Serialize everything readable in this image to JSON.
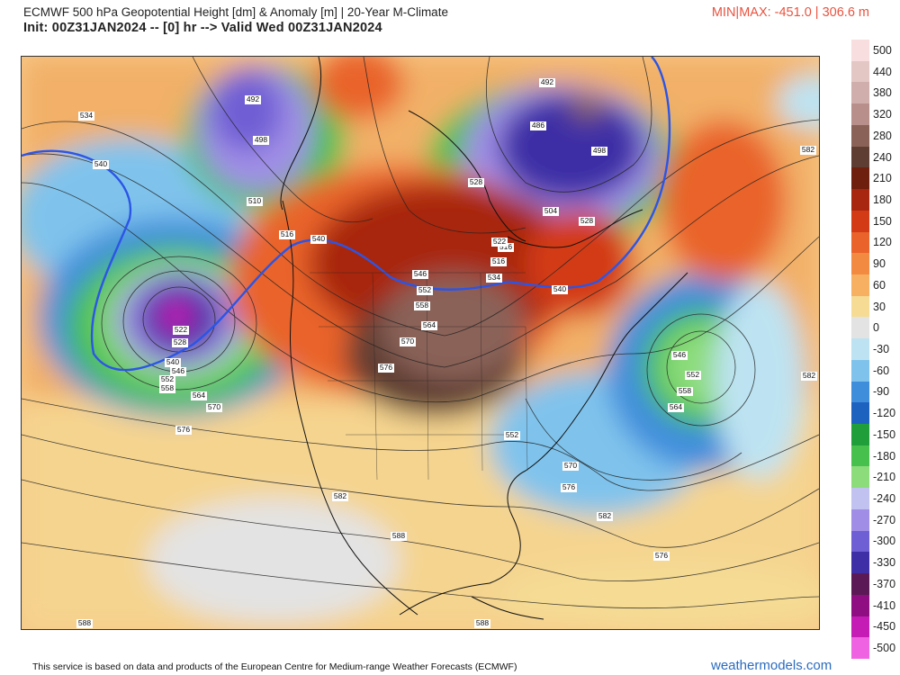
{
  "header": {
    "title": "ECMWF 500 hPa Geopotential Height [dm] & Anomaly [m] | 20-Year M-Climate",
    "subtitle": "Init: 00Z31JAN2024 -- [0] hr --> Valid Wed 00Z31JAN2024",
    "minmax": "MIN|MAX: -451.0 | 306.6 m"
  },
  "colorbar": {
    "labels": [
      "500",
      "440",
      "380",
      "320",
      "280",
      "240",
      "210",
      "180",
      "150",
      "120",
      "90",
      "60",
      "30",
      "0",
      "-30",
      "-60",
      "-90",
      "-120",
      "-150",
      "-180",
      "-210",
      "-240",
      "-270",
      "-300",
      "-330",
      "-370",
      "-410",
      "-450",
      "-500"
    ],
    "colors": [
      "#f8dede",
      "#e3c7c4",
      "#cfaeac",
      "#b98f8c",
      "#8a6258",
      "#5e3e33",
      "#6e1f0d",
      "#a8260f",
      "#d33b17",
      "#e9632a",
      "#f28a41",
      "#f7b061",
      "#f5db94",
      "#e3e3e3",
      "#bde3f2",
      "#7fc3ec",
      "#3f8edc",
      "#1e62c0",
      "#1f9e3a",
      "#48c04e",
      "#8ddc7c",
      "#c2c2f0",
      "#a08ee6",
      "#6f5fd4",
      "#3e2fa6",
      "#5b1a55",
      "#8f0f83",
      "#c41cb4",
      "#ef62e1"
    ]
  },
  "map": {
    "contour_labels": [
      "534",
      "540",
      "498",
      "510",
      "516",
      "492",
      "492",
      "486",
      "498",
      "504",
      "528",
      "528",
      "516",
      "522",
      "546",
      "552",
      "558",
      "534",
      "540",
      "564",
      "570",
      "576",
      "522",
      "528",
      "540",
      "546",
      "552",
      "558",
      "564",
      "570",
      "576",
      "546",
      "552",
      "558",
      "564",
      "552",
      "570",
      "576",
      "582",
      "582",
      "582",
      "588",
      "582",
      "576",
      "588",
      "588",
      "540",
      "516"
    ]
  },
  "footer": {
    "credit": "This service is based on data and products of the European Centre for Medium-range Weather Forecasts (ECMWF)",
    "brand": "weathermodels.com"
  }
}
